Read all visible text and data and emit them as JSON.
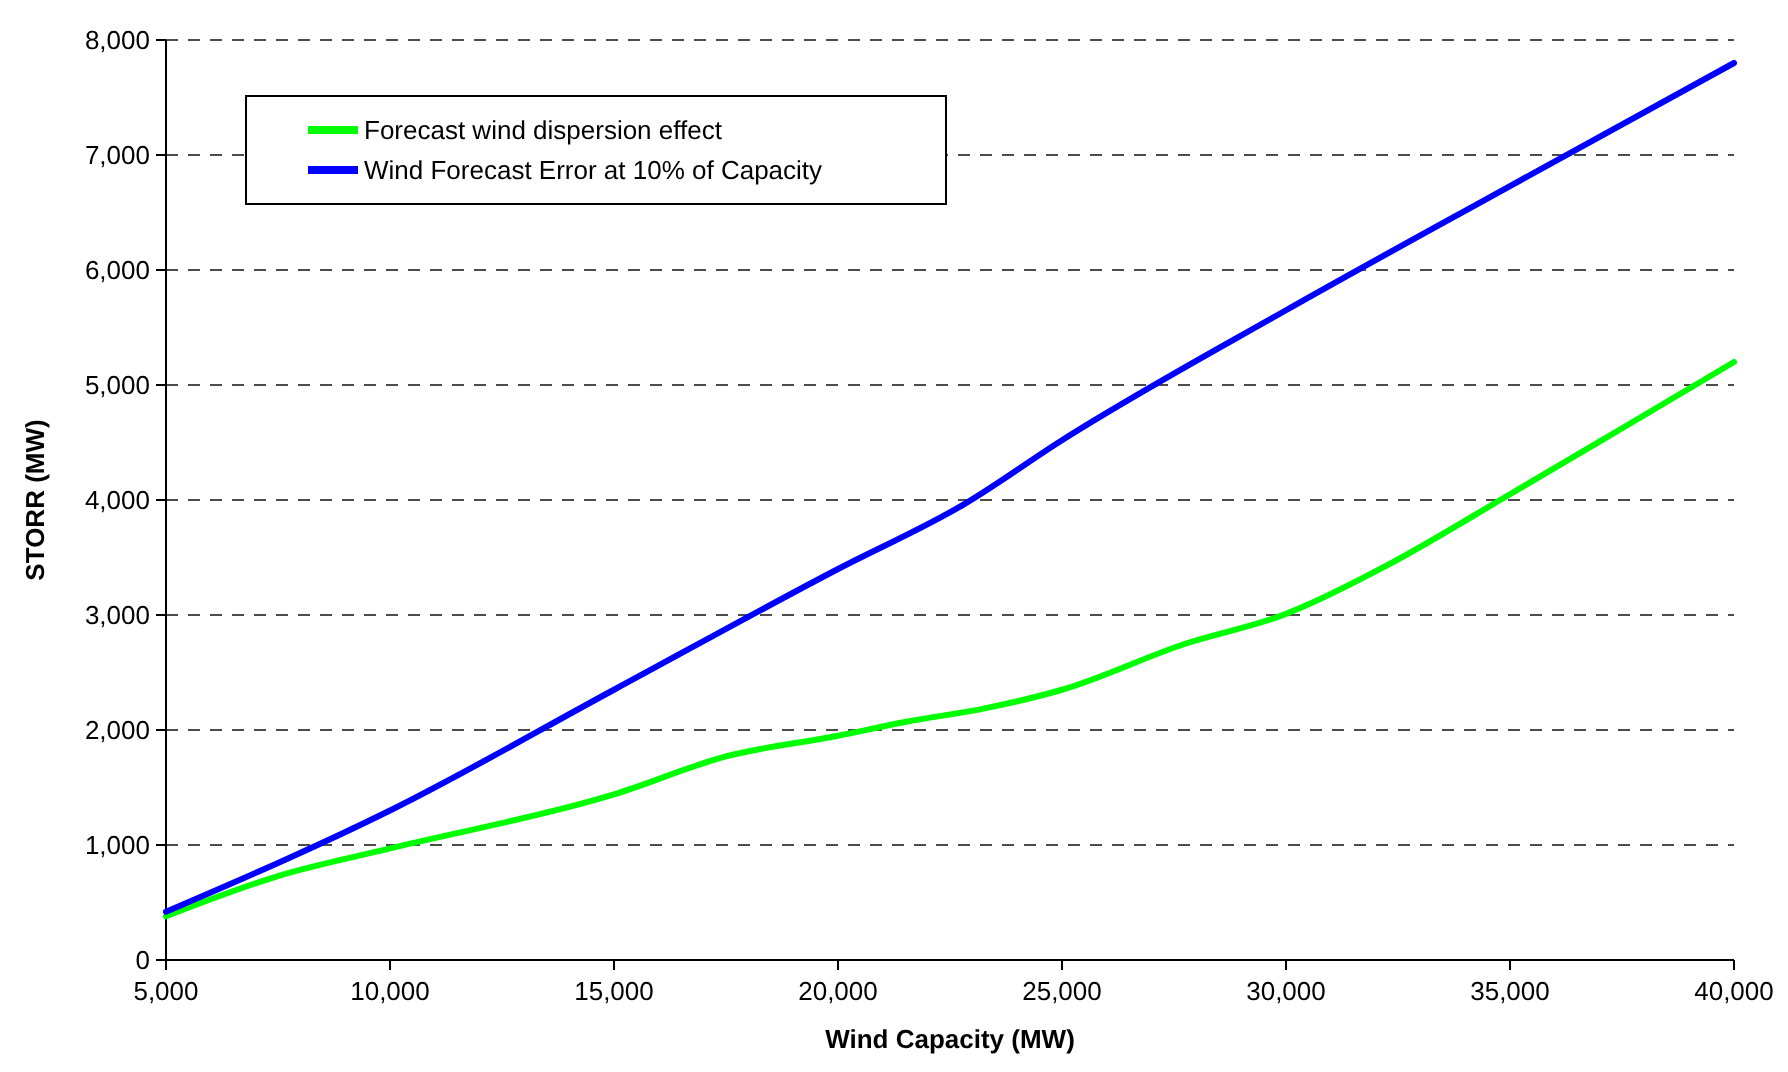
{
  "chart_data": {
    "type": "line",
    "xlabel": "Wind Capacity (MW)",
    "ylabel": "STORR (MW)",
    "xlim": [
      5000,
      40000
    ],
    "xticks": [
      {
        "value": 5000,
        "label": "5,000"
      },
      {
        "value": 10000,
        "label": "10,000"
      },
      {
        "value": 15000,
        "label": "15,000"
      },
      {
        "value": 20000,
        "label": "20,000"
      },
      {
        "value": 25000,
        "label": "25,000"
      },
      {
        "value": 30000,
        "label": "30,000"
      },
      {
        "value": 35000,
        "label": "35,000"
      },
      {
        "value": 40000,
        "label": "40,000"
      }
    ],
    "ylim": [
      0,
      8000
    ],
    "yticks": [
      0,
      {
        "value": 1000,
        "label": "1,000"
      },
      {
        "value": 2000,
        "label": "2,000"
      },
      {
        "value": 3000,
        "label": "3,000"
      },
      {
        "value": 4000,
        "label": "4,000"
      },
      {
        "value": 5000,
        "label": "5,000"
      },
      {
        "value": 6000,
        "label": "6,000"
      },
      {
        "value": 7000,
        "label": "7,000"
      },
      {
        "value": 8000,
        "label": "8,000"
      }
    ],
    "grid": "y",
    "legend": "top left",
    "marker": "none",
    "line_style": "solid",
    "series": [
      {
        "name": "Forecast wind dispersion effect",
        "color": "#00ff00",
        "x": [
          5000,
          7500,
          10000,
          15000,
          17500,
          20000,
          21500,
          23300,
          25000,
          27750,
          30000,
          30430,
          32200,
          35000,
          37400,
          40000
        ],
        "values": [
          380,
          730,
          970,
          1440,
          1770,
          1950,
          2070,
          2190,
          2350,
          2750,
          3010,
          3080,
          3420,
          4050,
          4600,
          5200
        ]
      },
      {
        "name": "Wind Forecast Error at 10% of Capacity",
        "color": "#0000ff",
        "x": [
          5000,
          10000,
          15000,
          20000,
          22800,
          25000,
          30000,
          35000,
          40000
        ],
        "values": [
          420,
          1300,
          2350,
          3400,
          3960,
          4520,
          5650,
          6730,
          7800
        ]
      }
    ]
  }
}
